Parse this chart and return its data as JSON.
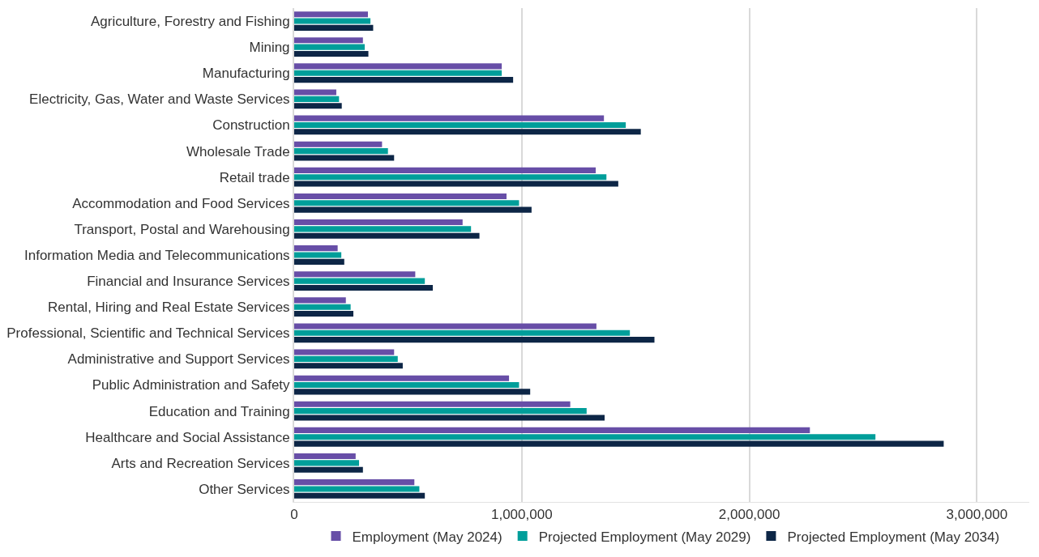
{
  "chart_data": {
    "type": "bar",
    "orientation": "horizontal",
    "categories": [
      "Agriculture, Forestry and Fishing",
      "Mining",
      "Manufacturing",
      "Electricity, Gas, Water and Waste Services",
      "Construction",
      "Wholesale Trade",
      "Retail trade",
      "Accommodation and Food Services",
      "Transport, Postal and Warehousing",
      "Information Media and Telecommunications",
      "Financial and Insurance Services",
      "Rental, Hiring and Real Estate Services",
      "Professional, Scientific and Technical Services",
      "Administrative and Support Services",
      "Public Administration and Safety",
      "Education and Training",
      "Healthcare and Social Assistance",
      "Arts and Recreation Services",
      "Other Services"
    ],
    "series": [
      {
        "name": "Employment (May 2024)",
        "color": "#674ea7",
        "values": [
          324000,
          302000,
          912000,
          185000,
          1361000,
          386000,
          1325000,
          933000,
          740000,
          191000,
          532000,
          227000,
          1328000,
          439000,
          944000,
          1213000,
          2266000,
          270000,
          528000
        ]
      },
      {
        "name": "Projected Employment (May 2029)",
        "color": "#009e9a",
        "values": [
          335000,
          310000,
          912000,
          197000,
          1457000,
          412000,
          1372000,
          988000,
          777000,
          207000,
          574000,
          248000,
          1475000,
          455000,
          988000,
          1285000,
          2554000,
          285000,
          550000
        ]
      },
      {
        "name": "Projected Employment (May 2034)",
        "color": "#0d2646",
        "values": [
          347000,
          326000,
          962000,
          209000,
          1523000,
          439000,
          1424000,
          1043000,
          814000,
          220000,
          609000,
          260000,
          1583000,
          477000,
          1037000,
          1364000,
          2854000,
          302000,
          574000
        ]
      }
    ],
    "xlim": [
      0,
      3230000
    ],
    "xticks": [
      {
        "value": 0,
        "label": "0"
      },
      {
        "value": 1000000,
        "label": "1,000,000"
      },
      {
        "value": 2000000,
        "label": "2,000,000"
      },
      {
        "value": 3000000,
        "label": "3,000,000"
      }
    ],
    "grid": "x",
    "legend": "bottom"
  }
}
